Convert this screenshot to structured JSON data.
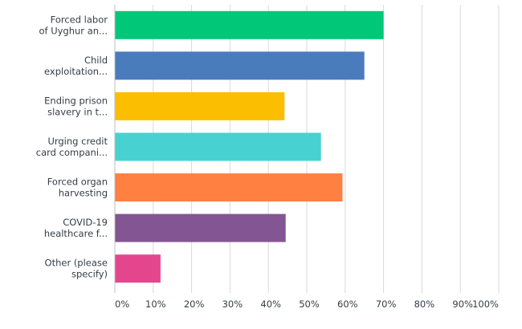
{
  "chart_data": {
    "type": "bar",
    "orientation": "horizontal",
    "categories": [
      [
        "Forced labor",
        "of Uyghur an..."
      ],
      [
        "Child",
        "exploitation..."
      ],
      [
        "Ending prison",
        "slavery in t..."
      ],
      [
        "Urging credit",
        "card compani..."
      ],
      [
        "Forced organ",
        "harvesting"
      ],
      [
        "COVID-19",
        "healthcare f..."
      ],
      [
        "Other (please",
        "specify)"
      ]
    ],
    "values": [
      70,
      65,
      44.2,
      53.7,
      59.3,
      44.5,
      11.9
    ],
    "colors": [
      "#00c878",
      "#4a7bbd",
      "#fcbe00",
      "#48d1d1",
      "#ff8040",
      "#845593",
      "#e4468e"
    ],
    "ticks": [
      "0%",
      "10%",
      "20%",
      "30%",
      "40%",
      "50%",
      "60%",
      "70%",
      "80%",
      "90%",
      "100%"
    ],
    "xlim": [
      0,
      100
    ],
    "grid": true,
    "title": "",
    "xlabel": "",
    "ylabel": ""
  }
}
